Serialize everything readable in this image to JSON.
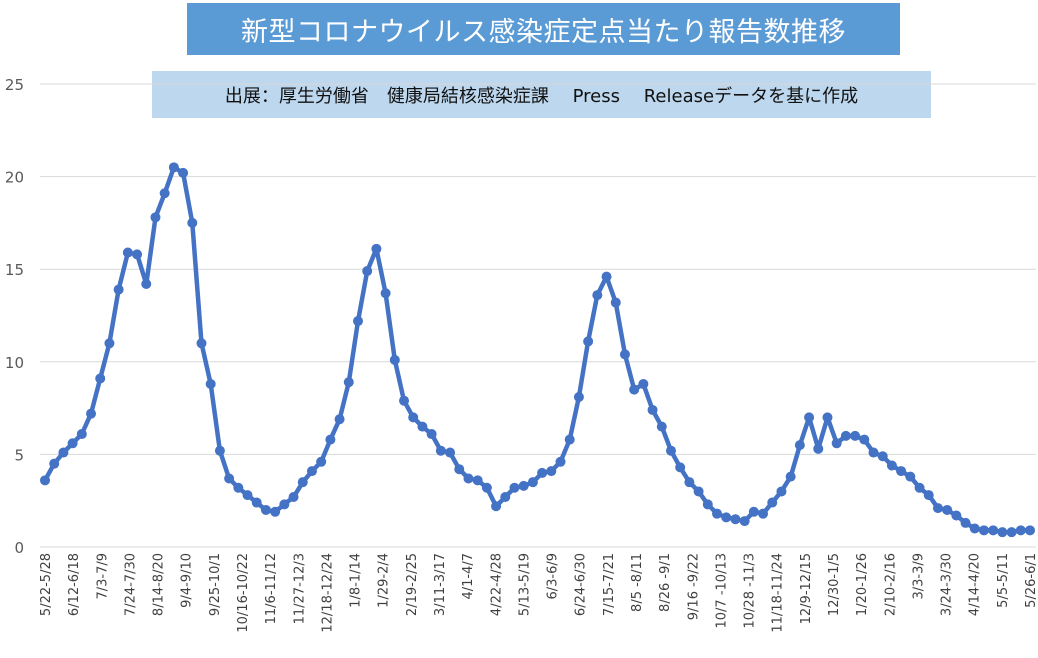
{
  "title": "新型コロナウイルス感染症定点当たり報告数推移",
  "source_note": "出展：厚生労働省　健康局結核感染症課　 Press　 Releaseデータを基に作成",
  "colors": {
    "series": "#4472c4",
    "title_bg": "#5b9bd5",
    "source_bg": "#bdd7ee",
    "grid": "#d9d9d9"
  },
  "chart_data": {
    "type": "line",
    "ylim": [
      0,
      25
    ],
    "yticks": [
      0,
      5,
      10,
      15,
      20,
      25
    ],
    "grid": true,
    "legend": "none",
    "xtick_labels": [
      "5/22-5/28",
      "6/12-6/18",
      "7/3-7/9",
      "7/24-7/30",
      "8/14-8/20",
      "9/4-9/10",
      "9/25-10/1",
      "10/16-10/22",
      "11/6-11/12",
      "11/27-12/3",
      "12/18-12/24",
      "1/8-1/14",
      "1/29-2/4",
      "2/19-2/25",
      "3/11-3/17",
      "4/1-4/7",
      "4/22-4/28",
      "5/13-5/19",
      "6/3-6/9",
      "6/24-6/30",
      "7/15-7/21",
      "8/5 -8/11",
      "8/26 -9/1",
      "9/16 -9/22",
      "10/7 -10/13",
      "10/28 -11/3",
      "11/18-11/24",
      "12/9-12/15",
      "12/30-1/5",
      "1/20-1/26",
      "2/10-2/16",
      "3/3-3/9",
      "3/24-3/30",
      "4/14-4/20",
      "5/5-5/11",
      "5/26-6/1"
    ],
    "values": [
      3.6,
      4.5,
      5.1,
      5.6,
      6.1,
      7.2,
      9.1,
      11.0,
      13.9,
      15.9,
      15.8,
      14.2,
      17.8,
      19.1,
      20.5,
      20.2,
      17.5,
      11.0,
      8.8,
      5.2,
      3.7,
      3.2,
      2.8,
      2.4,
      2.0,
      1.9,
      2.3,
      2.7,
      3.5,
      4.1,
      4.6,
      5.8,
      6.9,
      8.9,
      12.2,
      14.9,
      16.1,
      13.7,
      10.1,
      7.9,
      7.0,
      6.5,
      6.1,
      5.2,
      5.1,
      4.2,
      3.7,
      3.6,
      3.2,
      2.2,
      2.7,
      3.2,
      3.3,
      3.5,
      4.0,
      4.1,
      4.6,
      5.8,
      8.1,
      11.1,
      13.6,
      14.6,
      13.2,
      10.4,
      8.5,
      8.8,
      7.4,
      6.5,
      5.2,
      4.3,
      3.5,
      3.0,
      2.3,
      1.8,
      1.6,
      1.5,
      1.4,
      1.9,
      1.8,
      2.4,
      3.0,
      3.8,
      5.5,
      7.0,
      5.3,
      7.0,
      5.6,
      6.0,
      6.0,
      5.8,
      5.1,
      4.9,
      4.4,
      4.1,
      3.8,
      3.2,
      2.8,
      2.1,
      2.0,
      1.7,
      1.3,
      1.0,
      0.9,
      0.9,
      0.8,
      0.8,
      0.9,
      0.9
    ]
  }
}
